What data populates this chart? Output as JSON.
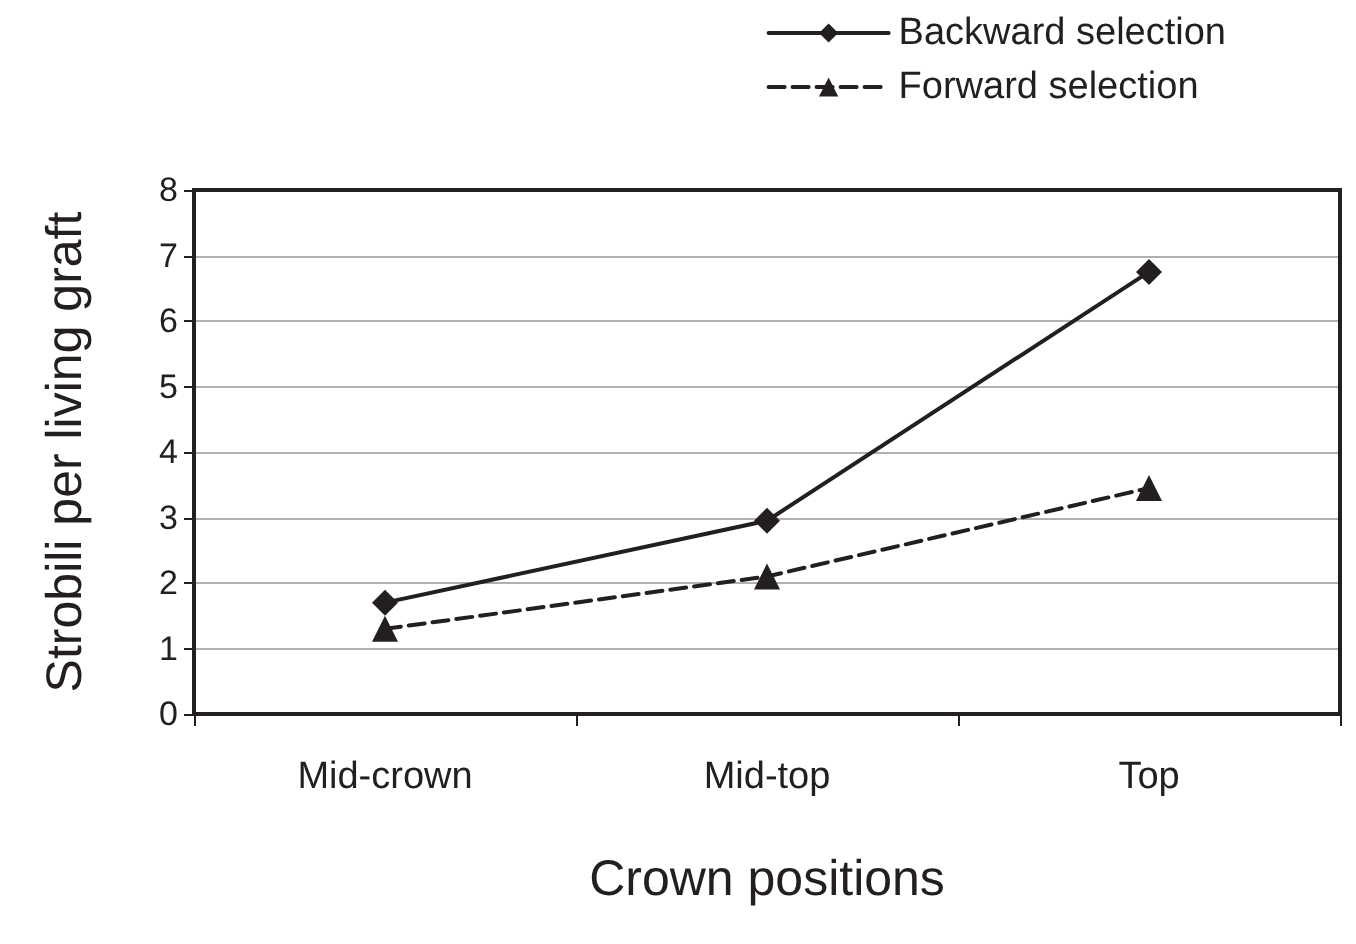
{
  "chart_data": {
    "type": "line",
    "xlabel": "Crown positions",
    "ylabel": "Strobili per living graft",
    "categories": [
      "Mid-crown",
      "Mid-top",
      "Top"
    ],
    "series": [
      {
        "name": "Backward selection",
        "color": "#231f20",
        "values": [
          1.7,
          2.95,
          6.75
        ],
        "marker": "diamond",
        "line_style": "solid"
      },
      {
        "name": "Forward selection",
        "color": "#231f20",
        "values": [
          1.3,
          2.1,
          3.45
        ],
        "marker": "triangle",
        "line_style": "dashed"
      }
    ],
    "ylim": [
      0,
      8
    ],
    "yticks": [
      0,
      1,
      2,
      3,
      4,
      5,
      6,
      7,
      8
    ],
    "grid": "y",
    "legend": "top right"
  }
}
